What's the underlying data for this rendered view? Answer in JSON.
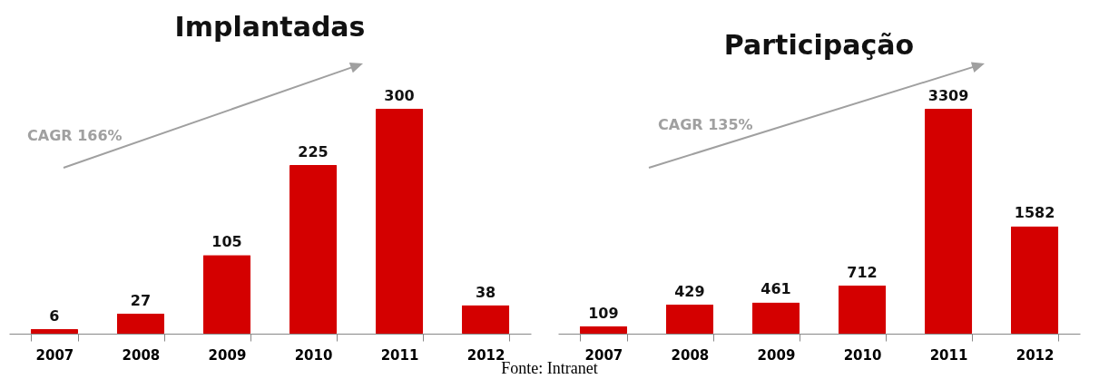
{
  "chart_data": [
    {
      "type": "bar",
      "title": "Implantadas",
      "categories": [
        "2007",
        "2008",
        "2009",
        "2010",
        "2011",
        "2012"
      ],
      "values": [
        6,
        27,
        105,
        225,
        300,
        38
      ],
      "color": "#d40000",
      "data_labels": true,
      "annotations": [
        "CAGR 166%",
        "Fonte: Intranet"
      ]
    },
    {
      "type": "bar",
      "title": "Participação",
      "categories": [
        "2007",
        "2008",
        "2009",
        "2010",
        "2011",
        "2012"
      ],
      "values": [
        109,
        429,
        461,
        712,
        3309,
        1582
      ],
      "color": "#d40000",
      "data_labels": true,
      "annotations": [
        "CAGR 135%"
      ]
    }
  ]
}
